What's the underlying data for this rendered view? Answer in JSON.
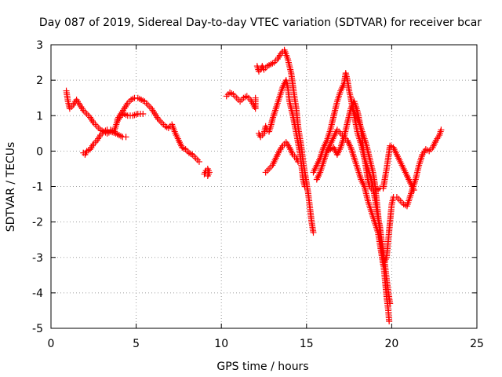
{
  "chart_data": {
    "type": "scatter",
    "title": "Day 087 of 2019, Sidereal Day-to-day VTEC variation (SDTVAR) for receiver bcar",
    "xlabel": "GPS time / hours",
    "ylabel": "SDTVAR / TECUs",
    "xlim": [
      0,
      25
    ],
    "ylim": [
      -5,
      3
    ],
    "xticks": [
      0,
      5,
      10,
      15,
      20,
      25
    ],
    "yticks": [
      -5,
      -4,
      -3,
      -2,
      -1,
      0,
      1,
      2,
      3
    ],
    "grid": true,
    "marker": "+",
    "series": [
      {
        "name": "SDTVAR",
        "color": "#ff0000",
        "segments": [
          [
            [
              0.9,
              1.7
            ],
            [
              1.0,
              1.4
            ],
            [
              1.1,
              1.2
            ],
            [
              1.3,
              1.3
            ],
            [
              1.5,
              1.45
            ],
            [
              1.7,
              1.3
            ],
            [
              1.9,
              1.15
            ],
            [
              2.1,
              1.05
            ],
            [
              2.3,
              0.95
            ],
            [
              2.5,
              0.8
            ],
            [
              2.7,
              0.7
            ],
            [
              2.9,
              0.6
            ],
            [
              3.1,
              0.55
            ],
            [
              3.3,
              0.5
            ],
            [
              3.5,
              0.55
            ],
            [
              3.8,
              0.5
            ],
            [
              4.0,
              0.45
            ],
            [
              4.2,
              0.4
            ],
            [
              4.4,
              0.4
            ]
          ],
          [
            [
              1.9,
              -0.05
            ],
            [
              2.0,
              -0.1
            ],
            [
              2.1,
              0.0
            ],
            [
              2.3,
              0.05
            ],
            [
              2.5,
              0.2
            ],
            [
              2.7,
              0.3
            ],
            [
              2.9,
              0.45
            ],
            [
              3.1,
              0.55
            ],
            [
              3.3,
              0.6
            ],
            [
              3.5,
              0.6
            ],
            [
              3.7,
              0.55
            ],
            [
              3.9,
              0.85
            ],
            [
              4.1,
              1.0
            ],
            [
              4.3,
              1.05
            ],
            [
              4.5,
              1.0
            ],
            [
              4.8,
              1.0
            ],
            [
              5.1,
              1.05
            ],
            [
              5.4,
              1.05
            ]
          ],
          [
            [
              3.9,
              0.9
            ],
            [
              4.1,
              1.05
            ],
            [
              4.3,
              1.2
            ],
            [
              4.5,
              1.35
            ],
            [
              4.7,
              1.45
            ],
            [
              4.9,
              1.5
            ],
            [
              5.1,
              1.5
            ],
            [
              5.3,
              1.45
            ],
            [
              5.5,
              1.4
            ],
            [
              5.7,
              1.3
            ],
            [
              5.9,
              1.2
            ],
            [
              6.1,
              1.05
            ],
            [
              6.3,
              0.9
            ],
            [
              6.5,
              0.8
            ],
            [
              6.7,
              0.7
            ],
            [
              6.9,
              0.65
            ],
            [
              7.1,
              0.75
            ],
            [
              7.3,
              0.5
            ],
            [
              7.5,
              0.3
            ],
            [
              7.7,
              0.1
            ],
            [
              7.9,
              0.05
            ],
            [
              8.1,
              -0.05
            ],
            [
              8.3,
              -0.1
            ],
            [
              8.5,
              -0.2
            ],
            [
              8.7,
              -0.3
            ]
          ],
          [
            [
              9.0,
              -0.65
            ],
            [
              9.1,
              -0.55
            ],
            [
              9.2,
              -0.5
            ],
            [
              9.3,
              -0.6
            ],
            [
              9.2,
              -0.7
            ]
          ],
          [
            [
              10.3,
              1.55
            ],
            [
              10.5,
              1.65
            ],
            [
              10.7,
              1.6
            ],
            [
              10.9,
              1.5
            ],
            [
              11.1,
              1.4
            ],
            [
              11.3,
              1.5
            ],
            [
              11.5,
              1.55
            ],
            [
              11.7,
              1.45
            ],
            [
              11.9,
              1.3
            ],
            [
              12.0,
              1.2
            ],
            [
              12.0,
              1.5
            ]
          ],
          [
            [
              12.1,
              2.4
            ],
            [
              12.2,
              2.25
            ],
            [
              12.3,
              2.3
            ],
            [
              12.4,
              2.4
            ],
            [
              12.5,
              2.3
            ],
            [
              12.7,
              2.4
            ],
            [
              12.9,
              2.45
            ],
            [
              13.1,
              2.5
            ],
            [
              13.3,
              2.6
            ],
            [
              13.5,
              2.75
            ],
            [
              13.7,
              2.85
            ],
            [
              13.9,
              2.6
            ],
            [
              14.1,
              2.2
            ],
            [
              14.3,
              1.5
            ],
            [
              14.4,
              1.2
            ],
            [
              14.5,
              0.7
            ],
            [
              14.6,
              0.4
            ],
            [
              14.7,
              0.1
            ],
            [
              14.8,
              -0.3
            ],
            [
              14.9,
              -0.6
            ],
            [
              15.0,
              -0.9
            ],
            [
              15.1,
              -1.2
            ],
            [
              15.2,
              -1.6
            ],
            [
              15.3,
              -2.0
            ],
            [
              15.4,
              -2.3
            ]
          ],
          [
            [
              12.2,
              0.5
            ],
            [
              12.3,
              0.4
            ],
            [
              12.5,
              0.5
            ],
            [
              12.6,
              0.7
            ],
            [
              12.7,
              0.6
            ],
            [
              12.8,
              0.55
            ],
            [
              12.9,
              0.7
            ],
            [
              13.0,
              0.9
            ],
            [
              13.2,
              1.2
            ],
            [
              13.4,
              1.5
            ],
            [
              13.6,
              1.8
            ],
            [
              13.8,
              2.0
            ],
            [
              13.9,
              1.8
            ],
            [
              14.0,
              1.4
            ],
            [
              14.2,
              1.0
            ],
            [
              14.4,
              0.5
            ],
            [
              14.6,
              0.0
            ],
            [
              14.7,
              -0.4
            ],
            [
              14.8,
              -0.8
            ],
            [
              14.9,
              -1.0
            ]
          ],
          [
            [
              12.6,
              -0.6
            ],
            [
              12.8,
              -0.5
            ],
            [
              13.0,
              -0.4
            ],
            [
              13.2,
              -0.2
            ],
            [
              13.4,
              0.0
            ],
            [
              13.6,
              0.15
            ],
            [
              13.8,
              0.25
            ],
            [
              14.0,
              0.1
            ],
            [
              14.2,
              -0.1
            ],
            [
              14.4,
              -0.2
            ],
            [
              14.5,
              -0.3
            ]
          ],
          [
            [
              15.4,
              -0.6
            ],
            [
              15.6,
              -0.4
            ],
            [
              15.8,
              -0.2
            ],
            [
              16.0,
              0.1
            ],
            [
              16.2,
              0.3
            ],
            [
              16.4,
              0.6
            ],
            [
              16.6,
              1.0
            ],
            [
              16.8,
              1.4
            ],
            [
              17.0,
              1.7
            ],
            [
              17.2,
              1.9
            ],
            [
              17.3,
              2.2
            ],
            [
              17.4,
              2.0
            ],
            [
              17.5,
              1.7
            ],
            [
              17.6,
              1.5
            ],
            [
              17.7,
              1.2
            ],
            [
              17.9,
              1.0
            ],
            [
              18.1,
              0.8
            ],
            [
              18.3,
              0.5
            ],
            [
              18.5,
              0.2
            ],
            [
              18.7,
              -0.2
            ],
            [
              18.9,
              -0.6
            ],
            [
              19.0,
              -0.9
            ],
            [
              19.1,
              -1.3
            ],
            [
              19.2,
              -1.8
            ],
            [
              19.3,
              -2.3
            ],
            [
              19.4,
              -2.7
            ],
            [
              19.5,
              -3.1
            ],
            [
              19.6,
              -3.6
            ],
            [
              19.7,
              -4.1
            ],
            [
              19.8,
              -4.5
            ],
            [
              19.85,
              -4.8
            ]
          ],
          [
            [
              15.6,
              -0.8
            ],
            [
              15.8,
              -0.6
            ],
            [
              16.0,
              -0.3
            ],
            [
              16.2,
              0.0
            ],
            [
              16.4,
              0.2
            ],
            [
              16.6,
              0.4
            ],
            [
              16.8,
              0.6
            ],
            [
              17.0,
              0.5
            ],
            [
              17.2,
              0.4
            ],
            [
              17.4,
              0.8
            ],
            [
              17.6,
              1.2
            ],
            [
              17.8,
              1.4
            ],
            [
              18.0,
              1.1
            ],
            [
              18.2,
              0.6
            ],
            [
              18.4,
              -0.2
            ],
            [
              18.6,
              -0.8
            ],
            [
              18.7,
              -1.0
            ],
            [
              18.9,
              -1.1
            ],
            [
              19.1,
              -1.1
            ],
            [
              19.3,
              -1.05
            ],
            [
              19.5,
              -1.05
            ],
            [
              19.7,
              -0.5
            ],
            [
              19.9,
              0.15
            ],
            [
              20.1,
              0.1
            ],
            [
              20.3,
              -0.1
            ],
            [
              20.5,
              -0.3
            ],
            [
              20.7,
              -0.5
            ],
            [
              20.9,
              -0.7
            ],
            [
              21.1,
              -0.9
            ],
            [
              21.3,
              -1.1
            ]
          ],
          [
            [
              16.2,
              0.0
            ],
            [
              16.4,
              0.05
            ],
            [
              16.6,
              0.1
            ],
            [
              16.8,
              -0.1
            ],
            [
              17.0,
              0.1
            ],
            [
              17.2,
              0.4
            ],
            [
              17.4,
              0.3
            ],
            [
              17.6,
              0.1
            ],
            [
              17.8,
              -0.2
            ],
            [
              18.0,
              -0.5
            ],
            [
              18.2,
              -0.8
            ],
            [
              18.4,
              -1.0
            ],
            [
              18.5,
              -1.2
            ],
            [
              18.6,
              -1.4
            ],
            [
              18.8,
              -1.7
            ],
            [
              19.0,
              -2.0
            ],
            [
              19.2,
              -2.3
            ],
            [
              19.3,
              -2.6
            ],
            [
              19.4,
              -2.9
            ],
            [
              19.5,
              -3.2
            ],
            [
              19.7,
              -3.0
            ],
            [
              19.8,
              -2.5
            ],
            [
              19.9,
              -2.0
            ],
            [
              20.0,
              -1.5
            ],
            [
              20.1,
              -1.3
            ],
            [
              20.3,
              -1.3
            ],
            [
              20.5,
              -1.4
            ],
            [
              20.7,
              -1.5
            ],
            [
              20.9,
              -1.55
            ],
            [
              21.0,
              -1.4
            ],
            [
              21.2,
              -1.1
            ],
            [
              21.4,
              -0.8
            ],
            [
              21.6,
              -0.4
            ],
            [
              21.8,
              -0.1
            ],
            [
              22.0,
              0.05
            ],
            [
              22.2,
              0.0
            ],
            [
              22.4,
              0.1
            ],
            [
              22.6,
              0.3
            ],
            [
              22.8,
              0.45
            ],
            [
              22.9,
              0.6
            ]
          ],
          [
            [
              17.6,
              1.5
            ],
            [
              17.8,
              1.0
            ],
            [
              18.0,
              0.5
            ],
            [
              18.2,
              0.2
            ],
            [
              18.4,
              -0.2
            ],
            [
              18.6,
              -0.5
            ],
            [
              18.8,
              -0.8
            ],
            [
              18.9,
              -1.0
            ],
            [
              19.0,
              -1.3
            ],
            [
              19.1,
              -1.6
            ],
            [
              19.2,
              -1.9
            ],
            [
              19.3,
              -2.1
            ],
            [
              19.4,
              -2.5
            ],
            [
              19.5,
              -2.8
            ],
            [
              19.6,
              -3.2
            ],
            [
              19.7,
              -3.6
            ],
            [
              19.8,
              -4.0
            ],
            [
              19.9,
              -4.3
            ]
          ]
        ]
      }
    ]
  }
}
